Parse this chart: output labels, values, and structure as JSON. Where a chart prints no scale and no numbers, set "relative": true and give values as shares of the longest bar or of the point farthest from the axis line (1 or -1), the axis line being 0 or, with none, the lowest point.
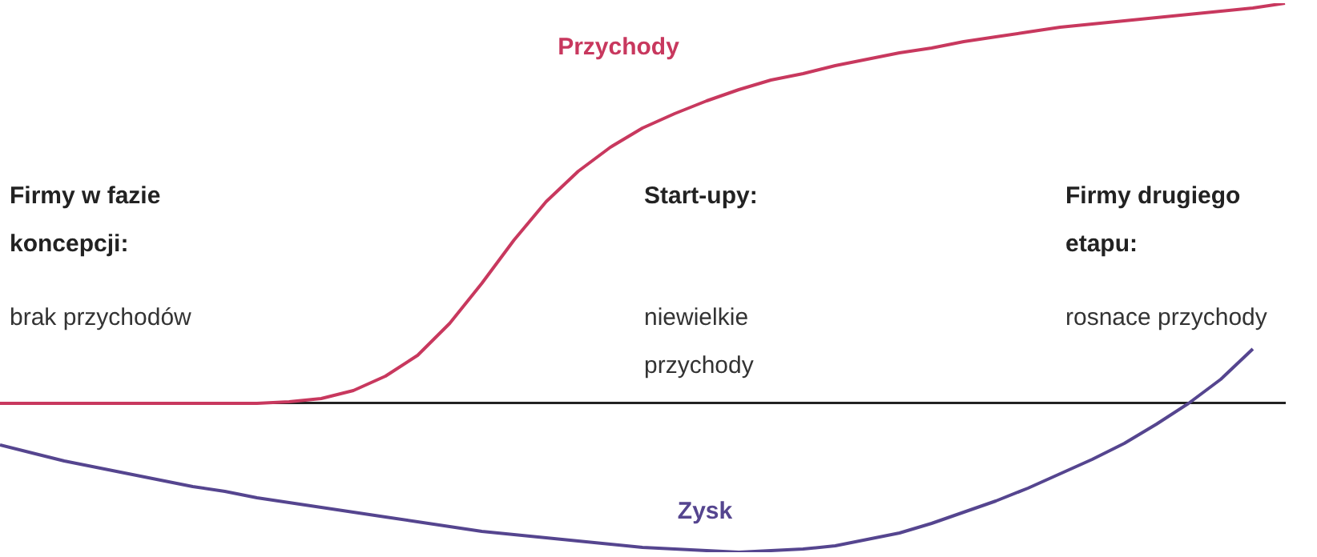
{
  "chart_data": {
    "type": "line",
    "relative": true,
    "tick_labels": false,
    "grid": false,
    "legend": false,
    "marker": "none",
    "line_style": "solid",
    "categories": [
      null,
      null,
      null,
      null,
      null,
      null,
      null,
      null,
      null,
      null,
      null,
      null,
      null,
      null,
      null,
      null,
      null,
      null,
      null,
      null,
      null,
      null,
      null,
      null,
      null,
      null,
      null,
      null,
      null,
      null,
      null,
      null,
      null,
      null,
      null,
      null,
      null,
      null,
      null,
      null,
      null
    ],
    "series": [
      {
        "name": "Przychody",
        "color": "#c8385e",
        "values": [
          0,
          0,
          0,
          0,
          0,
          0,
          0,
          0,
          0,
          0.004,
          0.012,
          0.032,
          0.068,
          0.12,
          0.2,
          0.3,
          0.408,
          0.504,
          0.58,
          0.64,
          0.688,
          0.724,
          0.756,
          0.784,
          0.808,
          0.824,
          0.844,
          0.86,
          0.876,
          0.888,
          0.904,
          0.916,
          0.928,
          0.94,
          0.948,
          0.956,
          0.964,
          0.972,
          0.98,
          0.988,
          1
        ]
      },
      {
        "name": "Zysk",
        "color": "#55458f",
        "values": [
          -0.104,
          -0.124,
          -0.144,
          -0.16,
          -0.176,
          -0.192,
          -0.208,
          -0.22,
          -0.236,
          -0.248,
          -0.26,
          -0.272,
          -0.284,
          -0.296,
          -0.308,
          -0.32,
          -0.328,
          -0.336,
          -0.344,
          -0.352,
          -0.36,
          -0.364,
          -0.368,
          -0.372,
          -0.368,
          -0.364,
          -0.356,
          -0.34,
          -0.324,
          -0.3,
          -0.272,
          -0.244,
          -0.212,
          -0.176,
          -0.14,
          -0.1,
          -0.052,
          0,
          0.06,
          0.136,
          null
        ]
      }
    ],
    "annotations": [
      "Firmy w fazie koncepcji:",
      "brak przychodów",
      "Start-upy:",
      "niewielkie przychody",
      "Firmy drugiego etapu:",
      "rosnace przychody"
    ]
  }
}
